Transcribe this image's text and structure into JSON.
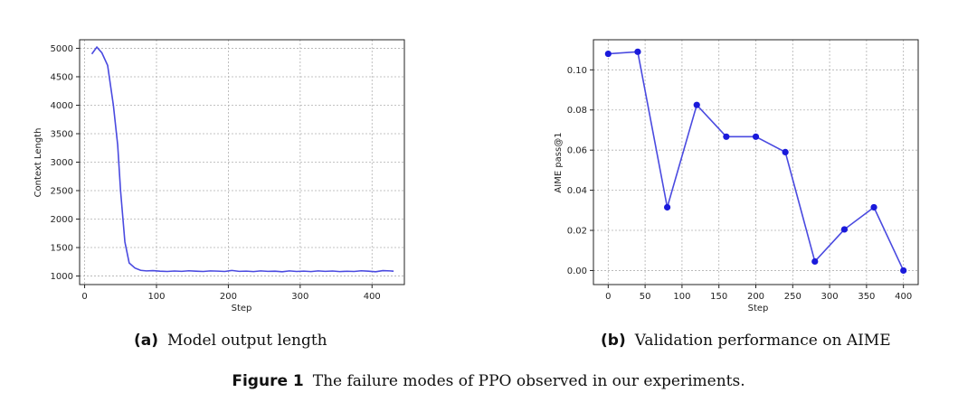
{
  "chart_data": [
    {
      "type": "line",
      "title": "",
      "xlabel": "Step",
      "ylabel": "Context Length",
      "xlim": [
        -7,
        445
      ],
      "ylim": [
        850,
        5150
      ],
      "xticks": [
        0,
        100,
        200,
        300,
        400
      ],
      "yticks": [
        1000,
        1500,
        2000,
        2500,
        3000,
        3500,
        4000,
        4500,
        5000
      ],
      "grid": true,
      "color": "#4a4ae0",
      "series": [
        {
          "name": "Model output length",
          "x": [
            10,
            17,
            24,
            32,
            40,
            46,
            50,
            56,
            62,
            70,
            78,
            86,
            95,
            105,
            115,
            125,
            135,
            145,
            155,
            165,
            175,
            185,
            195,
            205,
            215,
            225,
            235,
            245,
            255,
            265,
            275,
            285,
            295,
            305,
            315,
            325,
            335,
            345,
            355,
            365,
            375,
            385,
            395,
            405,
            415,
            425,
            430
          ],
          "y": [
            4900,
            5020,
            4920,
            4700,
            4000,
            3300,
            2500,
            1600,
            1230,
            1140,
            1100,
            1090,
            1095,
            1085,
            1080,
            1088,
            1082,
            1092,
            1085,
            1080,
            1090,
            1086,
            1080,
            1098,
            1082,
            1086,
            1078,
            1090,
            1082,
            1085,
            1075,
            1090,
            1080,
            1086,
            1078,
            1090,
            1082,
            1088,
            1078,
            1084,
            1080,
            1092,
            1085,
            1075,
            1095,
            1090,
            1085
          ]
        }
      ]
    },
    {
      "type": "line",
      "title": "",
      "xlabel": "Step",
      "ylabel": "AIME pass@1",
      "xlim": [
        -20,
        420
      ],
      "ylim": [
        -0.007,
        0.115
      ],
      "xticks": [
        0,
        50,
        100,
        150,
        200,
        250,
        300,
        350,
        400
      ],
      "yticks": [
        0.0,
        0.02,
        0.04,
        0.06,
        0.08,
        0.1
      ],
      "grid": true,
      "color": "#4a4ae0",
      "markers": true,
      "series": [
        {
          "name": "Validation performance on AIME",
          "x": [
            0,
            40,
            80,
            120,
            160,
            200,
            240,
            280,
            320,
            360,
            400
          ],
          "y": [
            0.108,
            0.109,
            0.0315,
            0.0825,
            0.0667,
            0.0667,
            0.059,
            0.0045,
            0.0205,
            0.0315,
            0.0
          ]
        }
      ]
    }
  ],
  "captions": {
    "a": {
      "label": "(a)",
      "text": "Model output length"
    },
    "b": {
      "label": "(b)",
      "text": "Validation performance on AIME"
    }
  },
  "figure_caption": {
    "label": "Figure 1",
    "text": "The failure modes of PPO observed in our experiments."
  }
}
